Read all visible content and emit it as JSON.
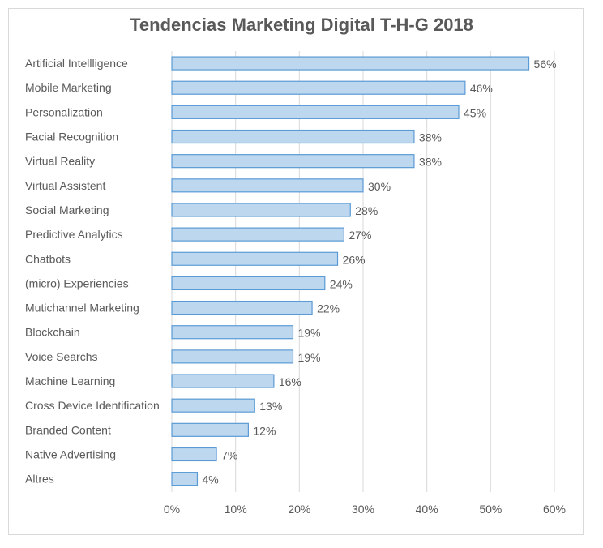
{
  "chart_data": {
    "type": "bar",
    "orientation": "horizontal",
    "title": "Tendencias Marketing Digital T-H-G 2018",
    "categories": [
      "Artificial Intellligence",
      "Mobile Marketing",
      "Personalization",
      "Facial Recognition",
      "Virtual Reality",
      "Virtual Assistent",
      "Social Marketing",
      "Predictive Analytics",
      "Chatbots",
      "(micro) Experiencies",
      "Mutichannel Marketing",
      "Blockchain",
      "Voice Searchs",
      "Machine Learning",
      "Cross Device Identification",
      "Branded Content",
      "Native Advertising",
      "Altres"
    ],
    "values": [
      56,
      46,
      45,
      38,
      38,
      30,
      28,
      27,
      26,
      24,
      22,
      19,
      19,
      16,
      13,
      12,
      7,
      4
    ],
    "value_labels": [
      "56%",
      "46%",
      "45%",
      "38%",
      "38%",
      "30%",
      "28%",
      "27%",
      "26%",
      "24%",
      "22%",
      "19%",
      "19%",
      "16%",
      "13%",
      "12%",
      "7%",
      "4%"
    ],
    "x_ticks": [
      "0%",
      "10%",
      "20%",
      "30%",
      "40%",
      "50%",
      "60%"
    ],
    "xlim": [
      0,
      60
    ],
    "xlabel": "",
    "ylabel": "",
    "grid": "vertical",
    "legend": "none",
    "colors": {
      "bar_fill": "#bdd7ee",
      "bar_stroke": "#5b9bd5",
      "grid": "#d9d9d9",
      "text": "#595959"
    }
  }
}
